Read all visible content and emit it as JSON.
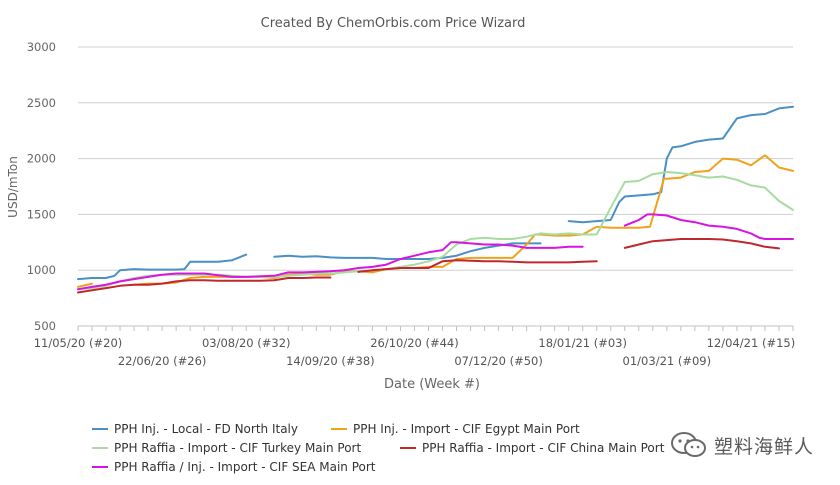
{
  "chart_data": {
    "type": "line",
    "title": "Created By ChemOrbis.com Price Wizard",
    "xlabel": "Date (Week #)",
    "ylabel": "USD/mTon",
    "ylim": [
      500,
      3000
    ],
    "yticks": [
      500,
      1000,
      1500,
      2000,
      2500,
      3000
    ],
    "xlim": [
      0,
      51
    ],
    "xticks": [
      {
        "x": 0,
        "label": "11/05/20 (#20)",
        "row": 0
      },
      {
        "x": 6,
        "label": "22/06/20 (#26)",
        "row": 1
      },
      {
        "x": 12,
        "label": "03/08/20 (#32)",
        "row": 0
      },
      {
        "x": 18,
        "label": "14/09/20 (#38)",
        "row": 1
      },
      {
        "x": 24,
        "label": "26/10/20 (#44)",
        "row": 0
      },
      {
        "x": 30,
        "label": "07/12/20 (#50)",
        "row": 1
      },
      {
        "x": 36,
        "label": "18/01/21 (#03)",
        "row": 0
      },
      {
        "x": 42,
        "label": "01/03/21 (#09)",
        "row": 1
      },
      {
        "x": 48,
        "label": "12/04/21 (#15)",
        "row": 0
      }
    ],
    "grid": true,
    "legend_position": "bottom",
    "series": [
      {
        "name": "PPH Inj. - Local - FD North Italy",
        "color": "#4a90c4",
        "segments": [
          [
            [
              0,
              920
            ],
            [
              1,
              930
            ],
            [
              2,
              930
            ],
            [
              2.6,
              950
            ],
            [
              3,
              1000
            ],
            [
              4,
              1010
            ],
            [
              5,
              1005
            ],
            [
              6,
              1005
            ],
            [
              7,
              1005
            ],
            [
              7.6,
              1010
            ],
            [
              8,
              1075
            ],
            [
              9,
              1075
            ],
            [
              10,
              1075
            ],
            [
              11,
              1090
            ],
            [
              12,
              1140
            ]
          ],
          [
            [
              14,
              1120
            ],
            [
              15,
              1130
            ],
            [
              16,
              1120
            ],
            [
              17,
              1125
            ],
            [
              18,
              1115
            ],
            [
              19,
              1110
            ],
            [
              20,
              1110
            ],
            [
              21,
              1110
            ],
            [
              22,
              1100
            ],
            [
              23,
              1100
            ],
            [
              24,
              1100
            ],
            [
              25,
              1100
            ],
            [
              26,
              1110
            ],
            [
              27,
              1130
            ],
            [
              28,
              1170
            ],
            [
              29,
              1200
            ],
            [
              30,
              1220
            ],
            [
              31,
              1240
            ],
            [
              32,
              1240
            ],
            [
              33,
              1240
            ]
          ],
          [
            [
              35,
              1440
            ],
            [
              36,
              1430
            ],
            [
              37,
              1440
            ],
            [
              38,
              1450
            ],
            [
              38.6,
              1610
            ],
            [
              39,
              1660
            ],
            [
              40,
              1670
            ],
            [
              41,
              1680
            ],
            [
              41.6,
              1700
            ],
            [
              42,
              2000
            ],
            [
              42.4,
              2100
            ],
            [
              43,
              2110
            ],
            [
              44,
              2150
            ],
            [
              45,
              2170
            ],
            [
              46,
              2180
            ],
            [
              47,
              2360
            ],
            [
              48,
              2390
            ],
            [
              49,
              2400
            ],
            [
              50,
              2450
            ],
            [
              51,
              2465
            ]
          ]
        ]
      },
      {
        "name": "PPH Inj. - Import - CIF Egypt Main Port",
        "color": "#f0a21e",
        "segments": [
          [
            [
              0,
              850
            ],
            [
              1,
              880
            ]
          ],
          [
            [
              4,
              870
            ],
            [
              5,
              880
            ],
            [
              6,
              880
            ],
            [
              7,
              890
            ],
            [
              8,
              930
            ],
            [
              9,
              940
            ],
            [
              10,
              940
            ],
            [
              11,
              940
            ],
            [
              12,
              940
            ],
            [
              13,
              940
            ],
            [
              14,
              930
            ],
            [
              15,
              960
            ],
            [
              16,
              970
            ],
            [
              17,
              960
            ],
            [
              18,
              960
            ],
            [
              19,
              990
            ],
            [
              20,
              990
            ],
            [
              21,
              980
            ],
            [
              22,
              1010
            ],
            [
              23,
              1020
            ],
            [
              24,
              1020
            ],
            [
              25,
              1030
            ],
            [
              26,
              1030
            ],
            [
              27,
              1100
            ],
            [
              28,
              1110
            ],
            [
              29,
              1110
            ],
            [
              30,
              1110
            ],
            [
              31,
              1110
            ],
            [
              32,
              1230
            ],
            [
              32.6,
              1320
            ],
            [
              33,
              1320
            ],
            [
              34,
              1310
            ],
            [
              35,
              1310
            ],
            [
              36,
              1320
            ],
            [
              37,
              1390
            ],
            [
              38,
              1380
            ],
            [
              39,
              1380
            ],
            [
              40,
              1380
            ],
            [
              40.8,
              1390
            ],
            [
              41.8,
              1820
            ],
            [
              42,
              1820
            ],
            [
              43,
              1830
            ],
            [
              44,
              1880
            ],
            [
              45,
              1890
            ],
            [
              46,
              2000
            ],
            [
              47,
              1990
            ],
            [
              48,
              1940
            ],
            [
              49,
              2030
            ],
            [
              50,
              1920
            ],
            [
              51,
              1890
            ]
          ]
        ]
      },
      {
        "name": "PPH Raffia - Import - CIF Turkey Main Port",
        "color": "#a7dca1",
        "segments": [
          [
            [
              0,
              830
            ],
            [
              1,
              840
            ],
            [
              2,
              860
            ],
            [
              3,
              900
            ],
            [
              4,
              930
            ],
            [
              5,
              950
            ],
            [
              6,
              960
            ],
            [
              7,
              960
            ],
            [
              8,
              960
            ],
            [
              9,
              960
            ],
            [
              10,
              960
            ],
            [
              11,
              950
            ],
            [
              12,
              940
            ],
            [
              13,
              940
            ],
            [
              14,
              940
            ],
            [
              15,
              950
            ],
            [
              16,
              960
            ],
            [
              17,
              970
            ],
            [
              18,
              970
            ],
            [
              19,
              980
            ],
            [
              20,
              990
            ],
            [
              21,
              1000
            ],
            [
              22,
              1010
            ],
            [
              23,
              1030
            ],
            [
              24,
              1050
            ],
            [
              25,
              1080
            ],
            [
              26,
              1120
            ],
            [
              27,
              1230
            ],
            [
              28,
              1280
            ],
            [
              29,
              1290
            ],
            [
              30,
              1280
            ],
            [
              31,
              1280
            ],
            [
              32,
              1300
            ],
            [
              33,
              1330
            ],
            [
              34,
              1320
            ],
            [
              35,
              1330
            ],
            [
              36,
              1320
            ],
            [
              37,
              1320
            ],
            [
              38,
              1560
            ],
            [
              39,
              1790
            ],
            [
              40,
              1800
            ],
            [
              41,
              1860
            ],
            [
              42,
              1880
            ],
            [
              43,
              1870
            ],
            [
              44,
              1850
            ],
            [
              45,
              1830
            ],
            [
              46,
              1840
            ],
            [
              47,
              1810
            ],
            [
              48,
              1760
            ],
            [
              49,
              1740
            ],
            [
              50,
              1620
            ],
            [
              51,
              1540
            ]
          ]
        ]
      },
      {
        "name": "PPH Raffia - Import - CIF China Main Port",
        "color": "#c0282d",
        "segments": [
          [
            [
              0,
              800
            ],
            [
              1,
              820
            ],
            [
              2,
              840
            ],
            [
              3,
              860
            ],
            [
              4,
              870
            ],
            [
              5,
              870
            ],
            [
              6,
              880
            ],
            [
              7,
              900
            ],
            [
              8,
              910
            ],
            [
              9,
              910
            ],
            [
              10,
              905
            ],
            [
              11,
              905
            ],
            [
              12,
              905
            ],
            [
              13,
              905
            ],
            [
              14,
              910
            ],
            [
              15,
              930
            ],
            [
              16,
              930
            ],
            [
              17,
              935
            ],
            [
              18,
              935
            ]
          ],
          [
            [
              20,
              985
            ],
            [
              21,
              1000
            ],
            [
              22,
              1010
            ],
            [
              23,
              1020
            ],
            [
              24,
              1020
            ],
            [
              25,
              1020
            ],
            [
              26,
              1080
            ],
            [
              27,
              1090
            ],
            [
              28,
              1085
            ],
            [
              29,
              1080
            ],
            [
              30,
              1080
            ],
            [
              31,
              1075
            ],
            [
              32,
              1070
            ],
            [
              33,
              1070
            ],
            [
              34,
              1070
            ],
            [
              35,
              1070
            ],
            [
              36,
              1075
            ],
            [
              37,
              1080
            ]
          ],
          [
            [
              39,
              1200
            ],
            [
              40,
              1230
            ],
            [
              41,
              1260
            ],
            [
              42,
              1270
            ],
            [
              43,
              1280
            ],
            [
              44,
              1280
            ],
            [
              45,
              1280
            ],
            [
              46,
              1275
            ],
            [
              47,
              1260
            ],
            [
              48,
              1240
            ],
            [
              49,
              1210
            ],
            [
              50,
              1195
            ]
          ]
        ]
      },
      {
        "name": "PPH Raffia / Inj. - Import - CIF SEA Main Port",
        "color": "#d815e0",
        "segments": [
          [
            [
              0,
              830
            ],
            [
              1,
              850
            ],
            [
              2,
              870
            ],
            [
              3,
              900
            ],
            [
              4,
              920
            ],
            [
              5,
              940
            ],
            [
              6,
              960
            ],
            [
              7,
              970
            ],
            [
              8,
              970
            ],
            [
              9,
              970
            ],
            [
              10,
              955
            ],
            [
              11,
              940
            ],
            [
              12,
              940
            ],
            [
              13,
              945
            ],
            [
              14,
              950
            ],
            [
              15,
              980
            ],
            [
              16,
              980
            ],
            [
              17,
              985
            ],
            [
              18,
              990
            ],
            [
              19,
              1000
            ],
            [
              20,
              1020
            ],
            [
              21,
              1030
            ],
            [
              22,
              1050
            ],
            [
              23,
              1100
            ],
            [
              24,
              1130
            ],
            [
              25,
              1160
            ],
            [
              26,
              1180
            ],
            [
              26.6,
              1250
            ],
            [
              27,
              1250
            ],
            [
              28,
              1240
            ],
            [
              29,
              1230
            ],
            [
              30,
              1230
            ],
            [
              31,
              1220
            ],
            [
              32,
              1200
            ],
            [
              33,
              1200
            ],
            [
              34,
              1200
            ],
            [
              35,
              1210
            ],
            [
              36,
              1210
            ]
          ],
          [
            [
              39,
              1400
            ],
            [
              40,
              1450
            ],
            [
              40.6,
              1500
            ],
            [
              41,
              1500
            ],
            [
              42,
              1490
            ],
            [
              43,
              1450
            ],
            [
              44,
              1430
            ],
            [
              45,
              1400
            ],
            [
              46,
              1390
            ],
            [
              47,
              1370
            ],
            [
              48,
              1330
            ],
            [
              48.6,
              1290
            ],
            [
              49,
              1280
            ],
            [
              50,
              1280
            ],
            [
              51,
              1280
            ]
          ]
        ]
      }
    ]
  },
  "watermark": {
    "text": "塑料海鲜人"
  }
}
